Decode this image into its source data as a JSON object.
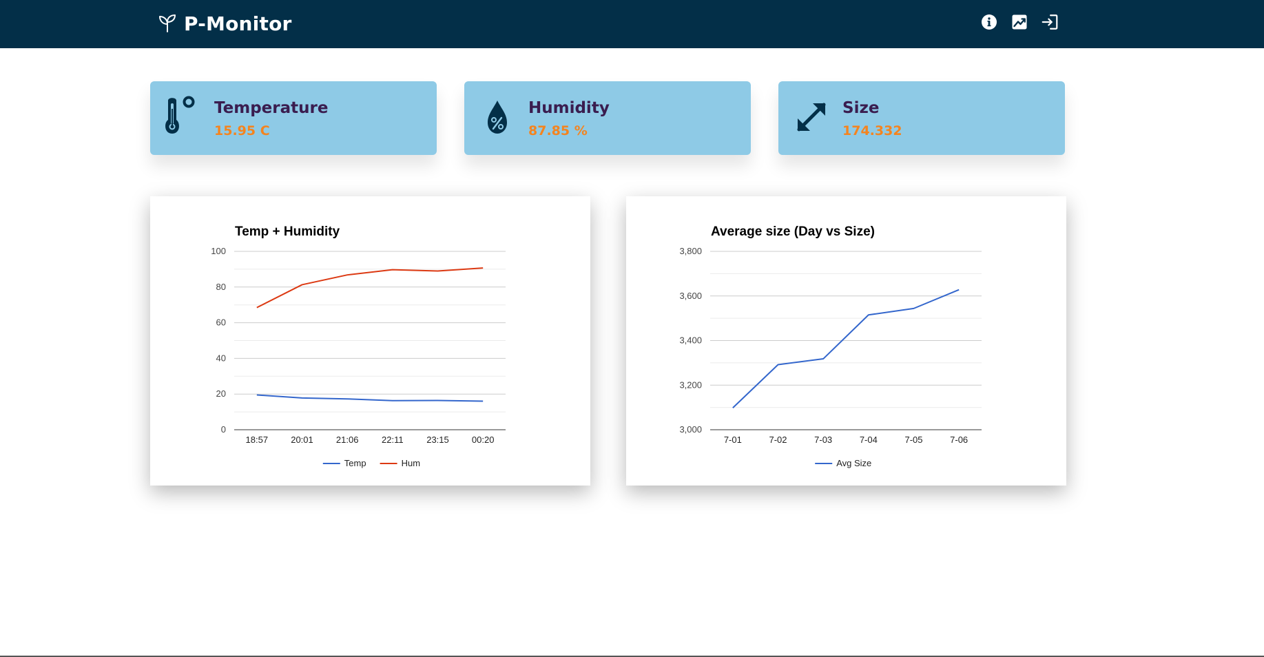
{
  "app": {
    "title": "P-Monitor"
  },
  "nav": [
    {
      "icon": "info-icon"
    },
    {
      "icon": "chart-icon"
    },
    {
      "icon": "sign-in-icon"
    }
  ],
  "cards": [
    {
      "title": "Temperature",
      "value": "15.95 C",
      "icon": "thermometer-icon"
    },
    {
      "title": "Humidity",
      "value": "87.85 %",
      "icon": "humidity-drop-icon"
    },
    {
      "title": "Size",
      "value": "174.332",
      "icon": "resize-arrow-icon"
    }
  ],
  "colors": {
    "header_bg": "#032f48",
    "card_bg": "#8ecae6",
    "card_title": "#3a1d4f",
    "card_value": "#f4841f",
    "series_temp": "#3366cc",
    "series_hum": "#dc3912"
  },
  "chart_data": [
    {
      "type": "line",
      "title": "Temp + Humidity",
      "categories": [
        "18:57",
        "20:01",
        "21:06",
        "22:11",
        "23:15",
        "00:20"
      ],
      "series": [
        {
          "name": "Temp",
          "values": [
            19.5,
            17.8,
            17.3,
            16.3,
            16.4,
            16.0
          ]
        },
        {
          "name": "Hum",
          "values": [
            68.5,
            81.3,
            86.8,
            89.7,
            89.0,
            90.7
          ]
        }
      ],
      "ylim": [
        0,
        100
      ],
      "yticks": [
        "0",
        "20",
        "40",
        "60",
        "80",
        "100"
      ],
      "grid": true,
      "legend": "bottom"
    },
    {
      "type": "line",
      "title": "Average size (Day vs Size)",
      "categories": [
        "7-01",
        "7-02",
        "7-03",
        "7-04",
        "7-05",
        "7-06"
      ],
      "series": [
        {
          "name": "Avg Size",
          "values": [
            3098,
            3292,
            3318,
            3515,
            3544,
            3628
          ]
        }
      ],
      "ylim": [
        3000,
        3800
      ],
      "yticks": [
        "3,000",
        "3,200",
        "3,400",
        "3,600",
        "3,800"
      ],
      "grid": true,
      "legend": "bottom"
    }
  ]
}
